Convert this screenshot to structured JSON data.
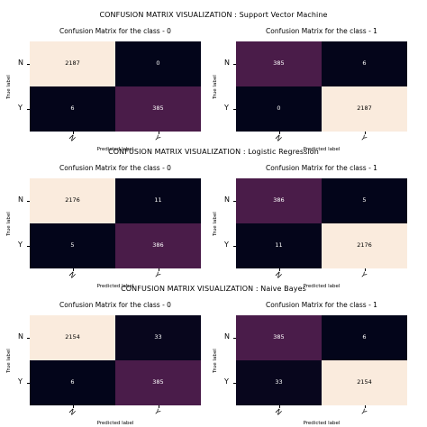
{
  "chart_data": [
    {
      "type": "heatmap",
      "section_title": "CONFUSION MATRIX VISUALIZATION : Support Vector Machine",
      "panels": [
        {
          "title": "Confusion Matrix for the class - 0",
          "x_categories": [
            "N",
            "Y"
          ],
          "y_categories": [
            "N",
            "Y"
          ],
          "xlabel": "Predicted label",
          "ylabel": "True label",
          "matrix": [
            [
              2187,
              0
            ],
            [
              6,
              385
            ]
          ]
        },
        {
          "title": "Confusion Matrix for the class - 1",
          "x_categories": [
            "N",
            "Y"
          ],
          "y_categories": [
            "N",
            "Y"
          ],
          "xlabel": "Predicted label",
          "ylabel": "True label",
          "matrix": [
            [
              385,
              6
            ],
            [
              0,
              2187
            ]
          ]
        }
      ]
    },
    {
      "type": "heatmap",
      "section_title": "CONFUSION MATRIX VISUALIZATION : Logistic Regression",
      "panels": [
        {
          "title": "Confusion Matrix for the class - 0",
          "x_categories": [
            "N",
            "Y"
          ],
          "y_categories": [
            "N",
            "Y"
          ],
          "xlabel": "Predicted label",
          "ylabel": "True label",
          "matrix": [
            [
              2176,
              11
            ],
            [
              5,
              386
            ]
          ]
        },
        {
          "title": "Confusion Matrix for the class - 1",
          "x_categories": [
            "N",
            "Y"
          ],
          "y_categories": [
            "N",
            "Y"
          ],
          "xlabel": "Predicted label",
          "ylabel": "True label",
          "matrix": [
            [
              386,
              5
            ],
            [
              11,
              2176
            ]
          ]
        }
      ]
    },
    {
      "type": "heatmap",
      "section_title": "CONFUSION MATRIX VISUALIZATION : Naive Bayes",
      "panels": [
        {
          "title": "Confusion Matrix for the class - 0",
          "x_categories": [
            "N",
            "Y"
          ],
          "y_categories": [
            "N",
            "Y"
          ],
          "xlabel": "Predicted label",
          "ylabel": "True label",
          "matrix": [
            [
              2154,
              33
            ],
            [
              6,
              385
            ]
          ]
        },
        {
          "title": "Confusion Matrix for the class - 1",
          "x_categories": [
            "N",
            "Y"
          ],
          "y_categories": [
            "N",
            "Y"
          ],
          "xlabel": "Predicted label",
          "ylabel": "True label",
          "matrix": [
            [
              385,
              6
            ],
            [
              33,
              2154
            ]
          ]
        }
      ]
    }
  ],
  "colors": {
    "low": "#03051a",
    "mid": "#4c1d4b",
    "high": "#faebdd",
    "text_on_dark": "#ffffff",
    "text_on_light": "#000000"
  }
}
